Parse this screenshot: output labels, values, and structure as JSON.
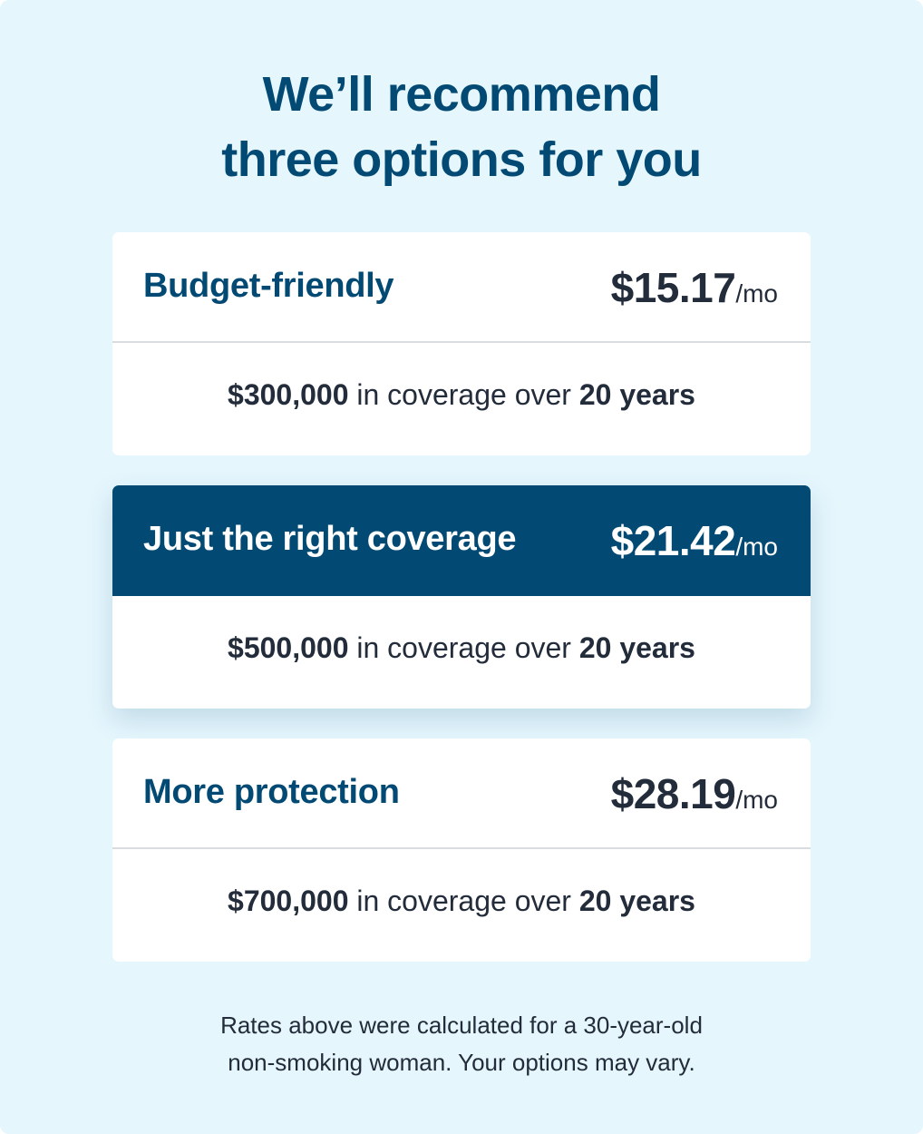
{
  "heading": {
    "line1": "We’ll recommend",
    "line2": "three options for you"
  },
  "colors": {
    "background": "#e5f6fd",
    "brand_navy": "#024a74",
    "text_dark": "#232c3a",
    "card": "#ffffff",
    "divider": "#dadde0"
  },
  "options": [
    {
      "name": "Budget-friendly",
      "price": "$15.17",
      "unit": "/mo",
      "coverage": "$300,000",
      "mid_text": "in coverage over",
      "term": "20 years",
      "highlighted": false
    },
    {
      "name": "Just the right coverage",
      "price": "$21.42",
      "unit": "/mo",
      "coverage": "$500,000",
      "mid_text": "in coverage over",
      "term": "20 years",
      "highlighted": true
    },
    {
      "name": "More protection",
      "price": "$28.19",
      "unit": "/mo",
      "coverage": "$700,000",
      "mid_text": "in coverage over",
      "term": "20 years",
      "highlighted": false
    }
  ],
  "footnote": {
    "line1": "Rates above were calculated for a 30-year-old",
    "line2": "non-smoking woman. Your options may vary."
  }
}
